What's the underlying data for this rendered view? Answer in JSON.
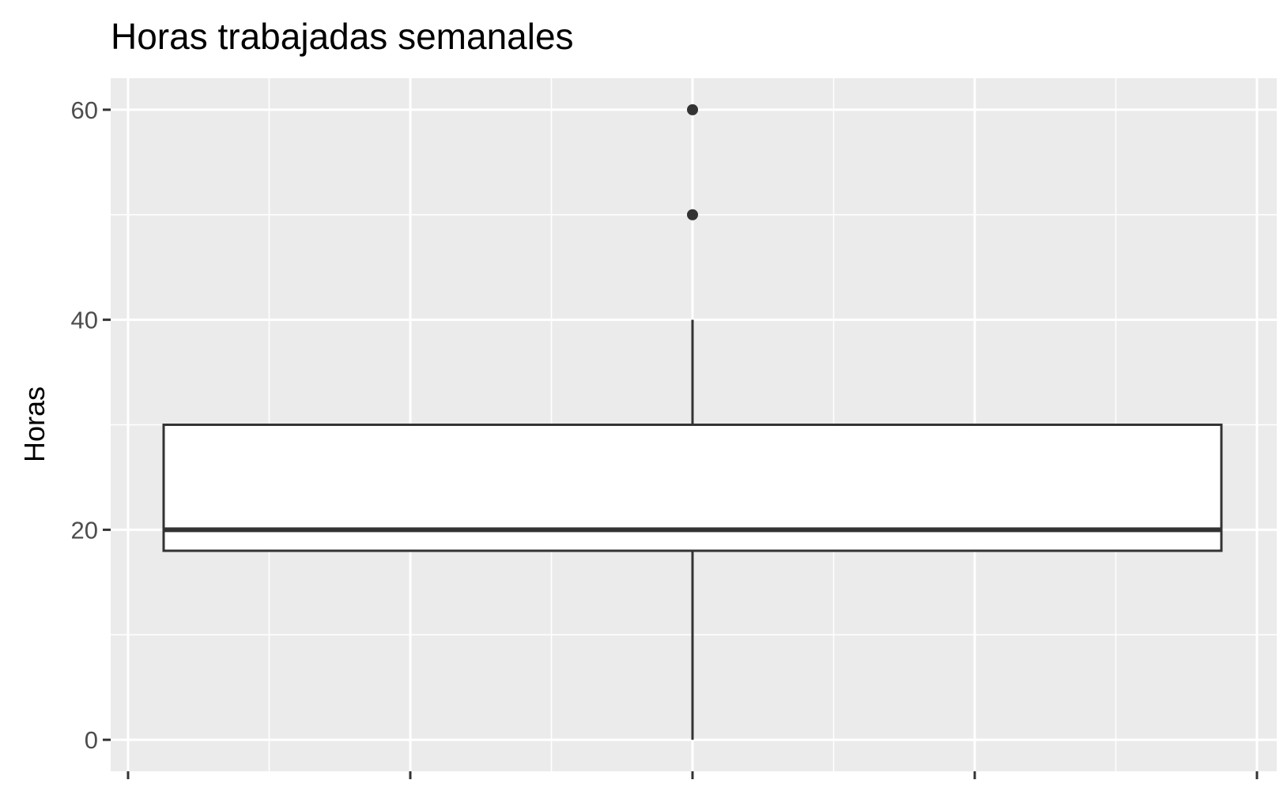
{
  "chart_data": {
    "type": "boxplot",
    "title": "Horas trabajadas semanales",
    "xlabel": "",
    "ylabel": "Horas",
    "ylim": [
      -3,
      63
    ],
    "y_ticks": [
      0,
      20,
      40,
      60
    ],
    "y_minor_ticks": [
      10,
      30,
      50
    ],
    "x_ticks_count": 5,
    "grid": true,
    "colors": {
      "panel": "#ebebeb",
      "grid": "#ffffff",
      "box_fill": "#ffffff",
      "box_line": "#333333",
      "tick_label": "#4d4d4d"
    },
    "box": {
      "whisker_low": 0,
      "q1": 18,
      "median": 20,
      "q3": 30,
      "whisker_high": 40,
      "outliers": [
        50,
        60
      ]
    }
  }
}
